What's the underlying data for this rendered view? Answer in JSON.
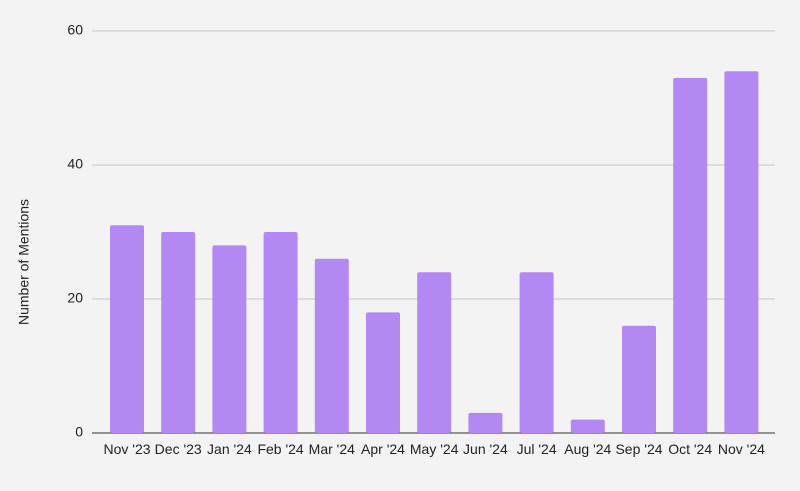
{
  "chart_data": {
    "type": "bar",
    "y_label": "Number of Mentions",
    "categories": [
      "Nov '23",
      "Dec '23",
      "Jan '24",
      "Feb '24",
      "Mar '24",
      "Apr '24",
      "May '24",
      "Jun '24",
      "Jul '24",
      "Aug '24",
      "Sep '24",
      "Oct '24",
      "Nov '24"
    ],
    "values": [
      31,
      30,
      28,
      30,
      26,
      18,
      24,
      3,
      24,
      2,
      16,
      53,
      54
    ],
    "color": "#b388f2",
    "ylim": [
      0,
      60
    ],
    "yticks": [
      0,
      20,
      40,
      60
    ],
    "grid": true
  }
}
